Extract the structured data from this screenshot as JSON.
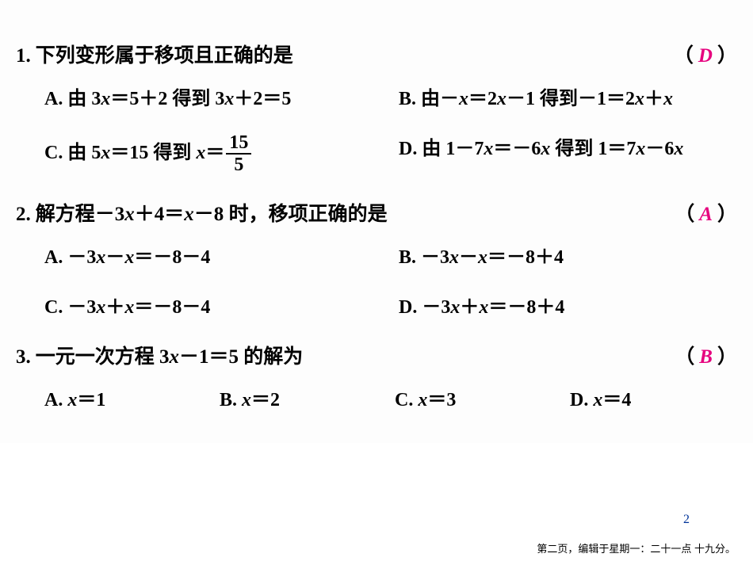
{
  "questions": [
    {
      "num": "1.",
      "stem": "下列变形属于移项且正确的是",
      "answer": "D",
      "layout": "two-col",
      "options": [
        {
          "label": "A.",
          "html": "由 <span class='mathn'>3</span><span class='math'>x</span><span class='mathn'>＝5＋2</span> 得到 <span class='mathn'>3</span><span class='math'>x</span><span class='mathn'>＋2＝5</span>"
        },
        {
          "label": "B.",
          "html": "由<span class='mathn'>－</span><span class='math'>x</span><span class='mathn'>＝2</span><span class='math'>x</span><span class='mathn'>－1</span> 得到<span class='mathn'>－1＝2</span><span class='math'>x</span><span class='mathn'>＋</span><span class='math'>x</span>"
        },
        {
          "label": "C.",
          "html": "由 <span class='mathn'>5</span><span class='math'>x</span><span class='mathn'>＝15</span> 得到 <span class='math'>x</span><span class='mathn'>＝</span><span class='frac'><span class='num'>15</span><span class='den'>5</span></span>"
        },
        {
          "label": "D.",
          "html": "由 <span class='mathn'>1－7</span><span class='math'>x</span><span class='mathn'>＝－6</span><span class='math'>x</span> 得到 <span class='mathn'>1＝7</span><span class='math'>x</span><span class='mathn'>－6</span><span class='math'>x</span>"
        }
      ]
    },
    {
      "num": "2.",
      "stem": "解方程<span class='mathn'>－3</span><span class='math'>x</span><span class='mathn'>＋4＝</span><span class='math'>x</span><span class='mathn'>－8</span> 时，移项正确的是",
      "answer": "A",
      "layout": "two-col",
      "options": [
        {
          "label": "A.",
          "html": "<span class='mathn'>－3</span><span class='math'>x</span><span class='mathn'>－</span><span class='math'>x</span><span class='mathn'>＝－8－4</span>"
        },
        {
          "label": "B.",
          "html": "<span class='mathn'>－3</span><span class='math'>x</span><span class='mathn'>－</span><span class='math'>x</span><span class='mathn'>＝－8＋4</span>"
        },
        {
          "label": "C.",
          "html": "<span class='mathn'>－3</span><span class='math'>x</span><span class='mathn'>＋</span><span class='math'>x</span><span class='mathn'>＝－8－4</span>"
        },
        {
          "label": "D.",
          "html": "<span class='mathn'>－3</span><span class='math'>x</span><span class='mathn'>＋</span><span class='math'>x</span><span class='mathn'>＝－8＋4</span>"
        }
      ]
    },
    {
      "num": "3.",
      "stem": "一元一次方程 <span class='mathn'>3</span><span class='math'>x</span><span class='mathn'>－1＝5</span> 的解为",
      "answer": "B",
      "layout": "four-col",
      "options": [
        {
          "label": "A.",
          "html": "<span class='math'>x</span><span class='mathn'>＝1</span>"
        },
        {
          "label": "B.",
          "html": "<span class='math'>x</span><span class='mathn'>＝2</span>"
        },
        {
          "label": "C.",
          "html": "<span class='math'>x</span><span class='mathn'>＝3</span>"
        },
        {
          "label": "D.",
          "html": "<span class='math'>x</span><span class='mathn'>＝4</span>"
        }
      ]
    }
  ],
  "page_number": "2",
  "footer": "第二页，编辑于星期一：二十一点 十九分。",
  "colors": {
    "answer": "#e6007e",
    "pagenum": "#003399",
    "text": "#000000",
    "background": "#ffffff"
  }
}
